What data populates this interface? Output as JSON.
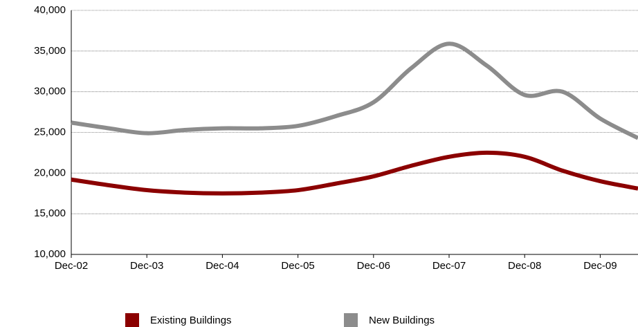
{
  "chart_data": {
    "type": "line",
    "categories": [
      "Dec-02",
      null,
      "Dec-03",
      null,
      "Dec-04",
      null,
      "Dec-05",
      null,
      "Dec-06",
      null,
      "Dec-07",
      null,
      "Dec-08",
      null,
      "Dec-09",
      null
    ],
    "series": [
      {
        "name": "Existing Buildings",
        "color": "#8b0000",
        "values": [
          19200,
          18500,
          17900,
          17600,
          17500,
          17600,
          17900,
          18700,
          19600,
          20900,
          22000,
          22500,
          22000,
          20300,
          19000,
          18100
        ]
      },
      {
        "name": "New Buildings",
        "color": "#8c8c8c",
        "values": [
          26200,
          25500,
          24900,
          25300,
          25500,
          25500,
          25800,
          27000,
          28700,
          32900,
          35900,
          33200,
          29600,
          30000,
          26700,
          24300
        ]
      }
    ],
    "ylim": [
      10000,
      40000
    ],
    "yticks": [
      {
        "value": 10000,
        "label": "10,000"
      },
      {
        "value": 15000,
        "label": "15,000"
      },
      {
        "value": 20000,
        "label": "20,000"
      },
      {
        "value": 25000,
        "label": "25,000"
      },
      {
        "value": 30000,
        "label": "30,000"
      },
      {
        "value": 35000,
        "label": "35,000"
      },
      {
        "value": 40000,
        "label": "40,000"
      }
    ],
    "grid": true
  }
}
